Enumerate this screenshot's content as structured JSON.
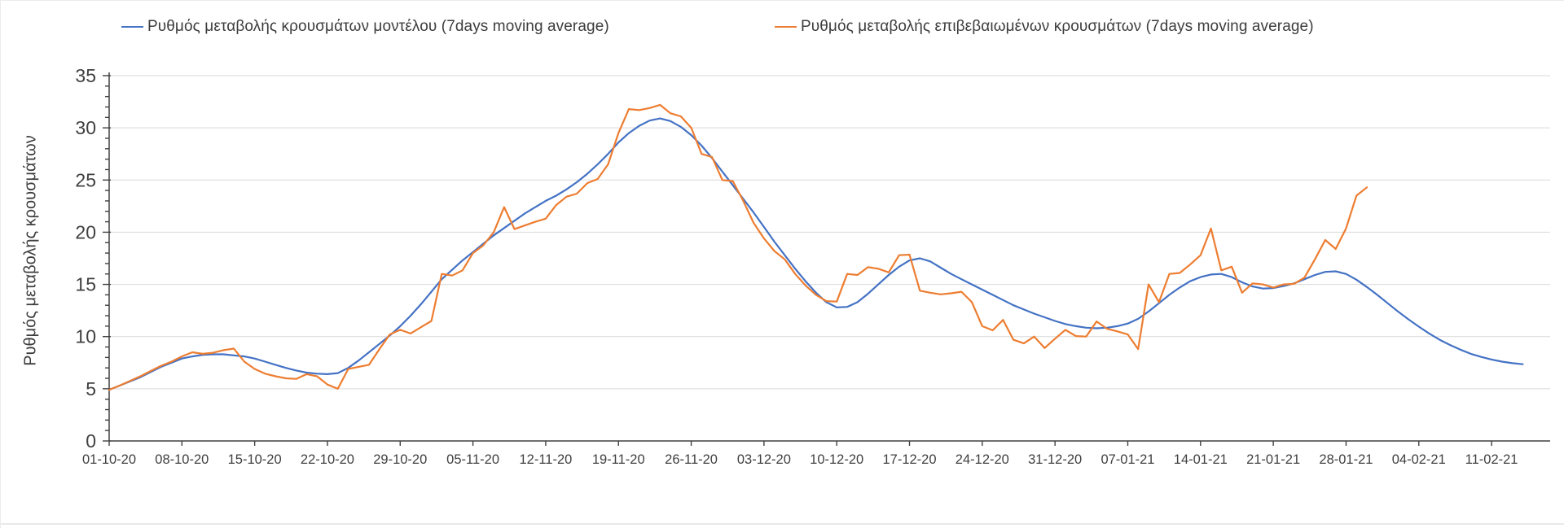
{
  "chart_data": {
    "type": "line",
    "title": "",
    "xlabel": "",
    "ylabel": "Ρυθμός μεταβολής κρουσμάτων",
    "ylim": [
      0,
      35
    ],
    "y_major_step": 5,
    "y_minor_step": 1,
    "grid": "horizontal-major-only",
    "legend_position": "top",
    "x_unit": "daily points, labeled weekly (dd-mm-yy)",
    "x_axis": {
      "tick_days": [
        0,
        7,
        14,
        21,
        28,
        35,
        42,
        49,
        56,
        63,
        70,
        77,
        84,
        91,
        98,
        105,
        112,
        119,
        126,
        133
      ],
      "tick_labels": [
        "01-10-20",
        "08-10-20",
        "15-10-20",
        "22-10-20",
        "29-10-20",
        "05-11-20",
        "12-11-20",
        "19-11-20",
        "26-11-20",
        "03-12-20",
        "10-12-20",
        "17-12-20",
        "24-12-20",
        "31-12-20",
        "07-01-21",
        "14-01-21",
        "21-01-21",
        "28-01-21",
        "04-02-21",
        "11-02-21"
      ]
    },
    "series": [
      {
        "name": "Ρυθμός μεταβολής κρουσμάτων μοντέλου (7days moving average)",
        "color": "#4472C4",
        "start_day": 0,
        "values": [
          4.9,
          5.3,
          5.7,
          6.1,
          6.6,
          7.1,
          7.5,
          7.9,
          8.1,
          8.25,
          8.3,
          8.3,
          8.2,
          8.1,
          7.9,
          7.6,
          7.3,
          7.0,
          6.75,
          6.55,
          6.45,
          6.4,
          6.5,
          7.0,
          7.7,
          8.5,
          9.3,
          10.1,
          11.0,
          12.0,
          13.1,
          14.3,
          15.5,
          16.4,
          17.3,
          18.1,
          18.9,
          19.7,
          20.4,
          21.1,
          21.8,
          22.4,
          23.0,
          23.5,
          24.1,
          24.8,
          25.6,
          26.5,
          27.5,
          28.6,
          29.5,
          30.2,
          30.7,
          30.9,
          30.65,
          30.1,
          29.3,
          28.3,
          27.1,
          25.8,
          24.5,
          23.2,
          21.9,
          20.5,
          19.1,
          17.8,
          16.5,
          15.3,
          14.2,
          13.3,
          12.8,
          12.85,
          13.3,
          14.1,
          15.0,
          15.9,
          16.7,
          17.3,
          17.5,
          17.2,
          16.6,
          16.0,
          15.5,
          15.0,
          14.5,
          14.0,
          13.5,
          13.0,
          12.6,
          12.2,
          11.85,
          11.5,
          11.2,
          11.0,
          10.85,
          10.8,
          10.85,
          11.0,
          11.25,
          11.7,
          12.4,
          13.2,
          14.0,
          14.7,
          15.3,
          15.7,
          15.95,
          16.0,
          15.7,
          15.2,
          14.8,
          14.6,
          14.65,
          14.85,
          15.1,
          15.5,
          15.9,
          16.2,
          16.25,
          16.0,
          15.45,
          14.75,
          14.0,
          13.2,
          12.4,
          11.65,
          10.95,
          10.3,
          9.7,
          9.2,
          8.75,
          8.35,
          8.05,
          7.8,
          7.6,
          7.45,
          7.35
        ]
      },
      {
        "name": "Ρυθμός μεταβολής επιβεβαιωμένων κρουσμάτων (7days moving average)",
        "color": "#ED7D31",
        "start_day": 0,
        "values": [
          4.9,
          5.3,
          5.75,
          6.2,
          6.7,
          7.2,
          7.6,
          8.1,
          8.5,
          8.35,
          8.45,
          8.7,
          8.85,
          7.6,
          6.9,
          6.45,
          6.2,
          6.0,
          5.95,
          6.4,
          6.2,
          5.4,
          5.0,
          6.9,
          7.1,
          7.3,
          8.8,
          10.2,
          10.65,
          10.3,
          10.9,
          11.5,
          16.0,
          15.85,
          16.35,
          18.0,
          18.75,
          20.0,
          22.4,
          20.3,
          20.65,
          21.0,
          21.3,
          22.6,
          23.4,
          23.7,
          24.7,
          25.1,
          26.5,
          29.5,
          31.8,
          31.7,
          31.9,
          32.2,
          31.4,
          31.1,
          30.0,
          27.5,
          27.2,
          25.0,
          24.9,
          23.0,
          20.9,
          19.4,
          18.2,
          17.4,
          16.0,
          14.9,
          14.0,
          13.4,
          13.35,
          16.0,
          15.9,
          16.65,
          16.5,
          16.15,
          17.8,
          17.85,
          14.4,
          14.2,
          14.05,
          14.15,
          14.3,
          13.3,
          11.0,
          10.6,
          11.6,
          9.7,
          9.35,
          10.0,
          8.9,
          9.8,
          10.65,
          10.05,
          10.0,
          11.45,
          10.75,
          10.5,
          10.2,
          8.8,
          15.0,
          13.3,
          16.0,
          16.1,
          16.9,
          17.8,
          20.35,
          16.35,
          16.7,
          14.2,
          15.1,
          15.0,
          14.7,
          15.0,
          15.05,
          15.65,
          17.4,
          19.25,
          18.4,
          20.35,
          23.5,
          24.3
        ]
      }
    ]
  },
  "colors": {
    "grid": "#D9D9D9",
    "axis": "#404040",
    "tick_text": "#404040",
    "legend_text": "#3d3d3d"
  }
}
